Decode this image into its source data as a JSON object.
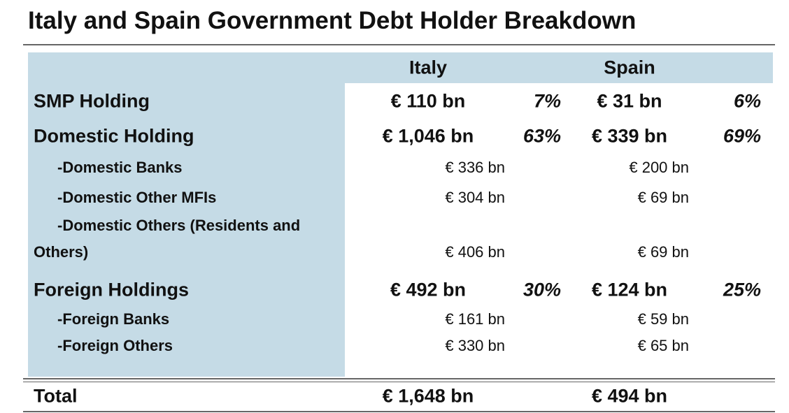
{
  "title": "Italy and Spain Government Debt Holder Breakdown",
  "table": {
    "columns": [
      "Italy",
      "Spain"
    ],
    "groups": [
      {
        "label": "SMP Holding",
        "italy": {
          "amount": "€ 110 bn",
          "share": "7%"
        },
        "spain": {
          "amount": "€ 31 bn",
          "share": "6%"
        },
        "items": []
      },
      {
        "label": "Domestic Holding",
        "italy": {
          "amount": "€ 1,046 bn",
          "share": "63%"
        },
        "spain": {
          "amount": "€ 339 bn",
          "share": "69%"
        },
        "items": [
          {
            "label": "-Domestic Banks",
            "italy": "€ 336 bn",
            "spain": "€ 200 bn"
          },
          {
            "label": "-Domestic Other MFIs",
            "italy": "€ 304 bn",
            "spain": "€ 69 bn"
          },
          {
            "label": "-Domestic Others (Residents and Others)",
            "italy": "€ 406 bn",
            "spain": "€ 69 bn"
          }
        ]
      },
      {
        "label": "Foreign Holdings",
        "italy": {
          "amount": "€ 492 bn",
          "share": "30%"
        },
        "spain": {
          "amount": "€ 124 bn",
          "share": "25%"
        },
        "items": [
          {
            "label": "-Foreign Banks",
            "italy": "€ 161 bn",
            "spain": "€ 59 bn"
          },
          {
            "label": "-Foreign Others",
            "italy": "€ 330 bn",
            "spain": "€ 65 bn"
          }
        ]
      }
    ],
    "total": {
      "label": "Total",
      "italy": "€ 1,648 bn",
      "spain": "€ 494 bn"
    }
  }
}
